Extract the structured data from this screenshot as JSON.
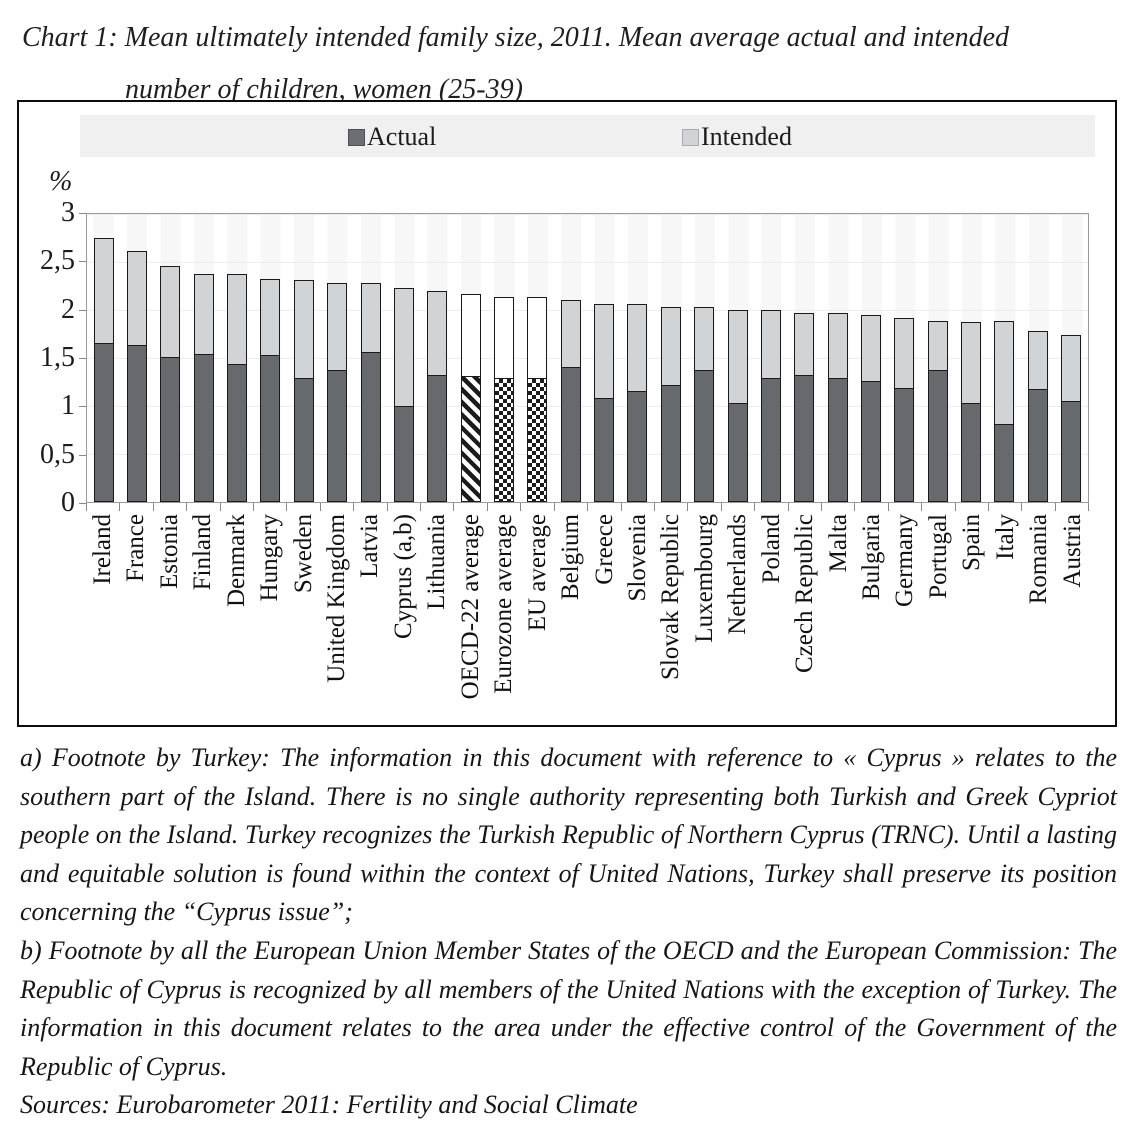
{
  "title": {
    "line1": "Chart 1: Mean ultimately intended family size, 2011. Mean average actual and intended",
    "line2": "number of children, women (25-39)"
  },
  "legend": {
    "actual": "Actual",
    "intended": "Intended"
  },
  "y_axis": {
    "unit": "%",
    "tick_labels": [
      "3",
      "2,5",
      "2",
      "1,5",
      "1",
      "0,5",
      "0"
    ]
  },
  "chart_data": {
    "type": "bar",
    "subtype": "stacked",
    "title": "Chart 1: Mean ultimately intended family size, 2011. Mean average actual and intended number of children, women (25-39)",
    "ylabel": "%",
    "ylim": [
      0,
      3
    ],
    "ytick_step": 0.5,
    "ytick_values": [
      3,
      2.5,
      2,
      1.5,
      1,
      0.5,
      0
    ],
    "grid": true,
    "legend_position": "top",
    "legend_entries": [
      "Actual",
      "Intended"
    ],
    "categories": [
      "Ireland",
      "France",
      "Estonia",
      "Finland",
      "Denmark",
      "Hungary",
      "Sweden",
      "United Kingdom",
      "Latvia",
      "Cyprus (a,b)",
      "Lithuania",
      "OECD-22 average",
      "Eurozone average",
      "EU average",
      "Belgium",
      "Greece",
      "Slovenia",
      "Slovak Republic",
      "Luxembourg",
      "Netherlands",
      "Poland",
      "Czech Republic",
      "Malta",
      "Bulgaria",
      "Germany",
      "Portugal",
      "Spain",
      "Italy",
      "Romania",
      "Austria"
    ],
    "series": [
      {
        "name": "Actual",
        "color": "#68696d",
        "values": [
          1.65,
          1.62,
          1.5,
          1.53,
          1.43,
          1.52,
          1.28,
          1.37,
          1.55,
          0.99,
          1.31,
          1.3,
          1.28,
          1.28,
          1.4,
          1.08,
          1.15,
          1.21,
          1.37,
          1.02,
          1.28,
          1.31,
          1.28,
          1.25,
          1.18,
          1.37,
          1.02,
          0.81,
          1.17,
          1.05
        ]
      },
      {
        "name": "Intended",
        "color": "#d2d3d5",
        "values": [
          1.08,
          0.98,
          0.94,
          0.83,
          0.93,
          0.79,
          1.02,
          0.9,
          0.72,
          1.22,
          0.87,
          0.85,
          0.84,
          0.84,
          0.69,
          0.97,
          0.9,
          0.81,
          0.65,
          0.97,
          0.71,
          0.65,
          0.68,
          0.68,
          0.72,
          0.5,
          0.84,
          1.06,
          0.6,
          0.68
        ]
      }
    ],
    "bar_totals": [
      2.73,
      2.6,
      2.44,
      2.36,
      2.36,
      2.31,
      2.3,
      2.27,
      2.27,
      2.21,
      2.18,
      2.15,
      2.12,
      2.12,
      2.09,
      2.05,
      2.05,
      2.02,
      2.02,
      1.99,
      1.99,
      1.96,
      1.96,
      1.93,
      1.9,
      1.87,
      1.86,
      1.87,
      1.77,
      1.73
    ],
    "bar_patterns": [
      "solid",
      "solid",
      "solid",
      "solid",
      "solid",
      "solid",
      "solid",
      "solid",
      "solid",
      "solid",
      "solid",
      "diagonal",
      "checker",
      "checker",
      "solid",
      "solid",
      "solid",
      "solid",
      "solid",
      "solid",
      "solid",
      "solid",
      "solid",
      "solid",
      "solid",
      "solid",
      "solid",
      "solid",
      "solid",
      "solid"
    ]
  },
  "footnotes": {
    "a": "a) Footnote by Turkey: The information in this document with reference to « Cyprus » relates to the southern part of the Island. There is no single authority representing both Turkish and Greek Cypriot people on the Island. Turkey recognizes the Turkish Republic of Northern Cyprus (TRNC). Until a lasting and equitable solution is found within the context of United Nations, Turkey shall preserve its position concerning the “Cyprus issue”;",
    "b": "b) Footnote by all the European Union Member States of the OECD and the European Commission: The Republic of Cyprus is recognized by all members of the United Nations with the exception of Turkey. The information in this document relates to the area under the effective control of the Government of the Republic of Cyprus.",
    "sources": "Sources: Eurobarometer 2011: Fertility and Social Climate"
  }
}
